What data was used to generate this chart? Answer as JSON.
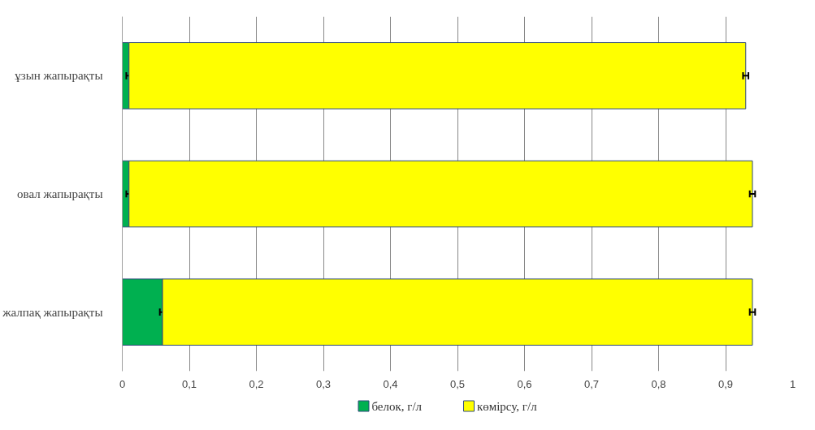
{
  "chart_data": {
    "type": "bar",
    "orientation": "horizontal",
    "stacked": true,
    "categories": [
      "ұзын жапырақты",
      "овал жапырақты",
      "жалпақ жапырақты"
    ],
    "series": [
      {
        "name": "белок, г/л",
        "color": "#00b050",
        "values": [
          0.01,
          0.01,
          0.06
        ],
        "errors": [
          0.004,
          0.004,
          0.004
        ]
      },
      {
        "name": "көмірсу, г/л",
        "color": "#ffff00",
        "values": [
          0.92,
          0.93,
          0.88
        ],
        "errors": [
          0.004,
          0.004,
          0.004
        ]
      }
    ],
    "xlim": [
      0,
      1
    ],
    "xticks": [
      0,
      {
        "value": 0.1,
        "label": "0,1"
      },
      {
        "value": 0.2,
        "label": "0,2"
      },
      {
        "value": 0.3,
        "label": "0,3"
      },
      {
        "value": 0.4,
        "label": "0,4"
      },
      {
        "value": 0.5,
        "label": "0,5"
      },
      {
        "value": 0.6,
        "label": "0,6"
      },
      {
        "value": 0.7,
        "label": "0,7"
      },
      {
        "value": 0.8,
        "label": "0,8"
      },
      {
        "value": 0.9,
        "label": "0,9"
      },
      1
    ],
    "grid": "x",
    "legend": "bottom"
  }
}
